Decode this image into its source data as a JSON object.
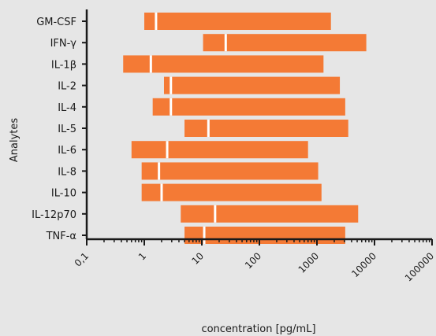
{
  "chart_data": {
    "type": "bar",
    "subtype": "floating-range-with-marker",
    "xscale": "log",
    "xlim": [
      0.1,
      100000
    ],
    "xlabel": "concentration [pg/mL]",
    "ylabel": "Analytes",
    "x_tick_labels": [
      "0,1",
      "1",
      "10",
      "100",
      "1000",
      "10000",
      "100000"
    ],
    "bar_color": "#f47a35",
    "marker_color": "#ffffff",
    "categories": [
      "GM-CSF",
      "IFN-γ",
      "IL-1β",
      "IL-2",
      "IL-4",
      "IL-5",
      "IL-6",
      "IL-8",
      "IL-10",
      "IL-12p70",
      "TNF-α"
    ],
    "ranges": [
      {
        "low": 1.0,
        "high": 1750,
        "marker": 1.6
      },
      {
        "low": 10.5,
        "high": 7200,
        "marker": 26
      },
      {
        "low": 0.43,
        "high": 1300,
        "marker": 1.3
      },
      {
        "low": 2.2,
        "high": 2500,
        "marker": 2.9
      },
      {
        "low": 1.4,
        "high": 3100,
        "marker": 2.9
      },
      {
        "low": 5.0,
        "high": 3500,
        "marker": 13
      },
      {
        "low": 0.6,
        "high": 700,
        "marker": 2.5
      },
      {
        "low": 0.9,
        "high": 1050,
        "marker": 1.8
      },
      {
        "low": 0.9,
        "high": 1200,
        "marker": 2.0
      },
      {
        "low": 4.3,
        "high": 5200,
        "marker": 17
      },
      {
        "low": 5.0,
        "high": 3100,
        "marker": 11
      }
    ]
  }
}
